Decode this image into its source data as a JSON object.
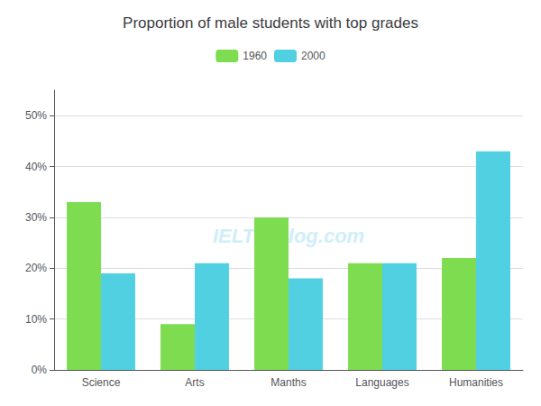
{
  "chart_data": {
    "type": "bar",
    "title": "Proportion of male students with top grades",
    "categories": [
      "Science",
      "Arts",
      "Manths",
      "Languages",
      "Humanities"
    ],
    "series": [
      {
        "name": "1960",
        "color": "#7edc50",
        "values": [
          33,
          9,
          30,
          21,
          22
        ]
      },
      {
        "name": "2000",
        "color": "#50d0e0",
        "values": [
          19,
          21,
          18,
          21,
          43
        ]
      }
    ],
    "ylim": [
      0,
      55
    ],
    "yticks": [
      {
        "value": 0,
        "label": "0%"
      },
      {
        "value": 10,
        "label": "10%"
      },
      {
        "value": 20,
        "label": "20%"
      },
      {
        "value": 30,
        "label": "30%"
      },
      {
        "value": 40,
        "label": "40%"
      },
      {
        "value": 50,
        "label": "50%"
      }
    ],
    "grid": true,
    "legend": "top",
    "annotations": [
      "IELTS-Blog.com"
    ]
  }
}
